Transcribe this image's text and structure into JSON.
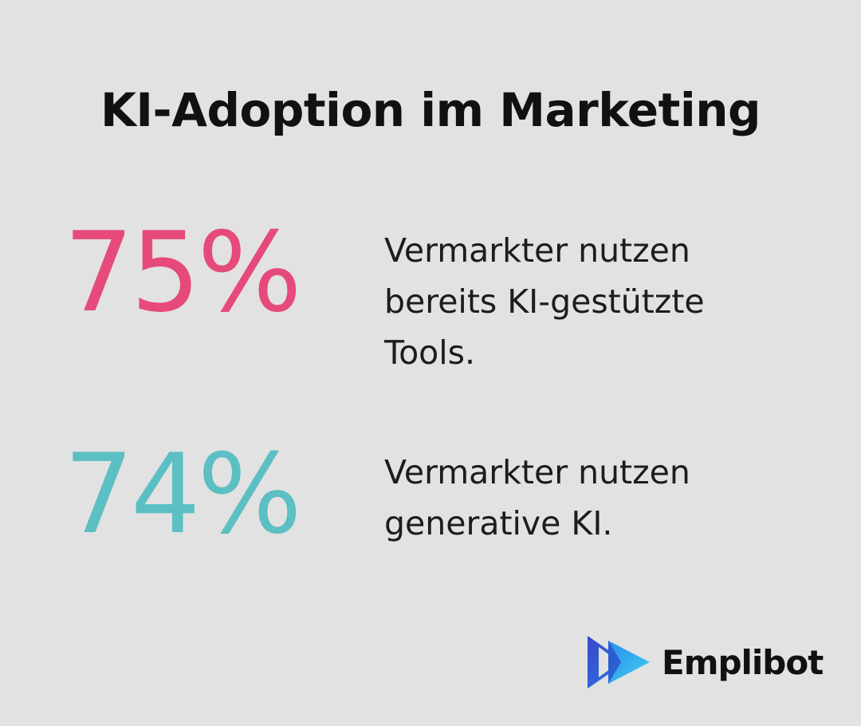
{
  "title": "KI-Adoption im Marketing",
  "stats": [
    {
      "value": "75%",
      "description": "Vermarkter nutzen bereits KI-gestützte Tools.",
      "color": "#e64a7a"
    },
    {
      "value": "74%",
      "description": "Vermarkter nutzen generative KI.",
      "color": "#5bbfc3"
    }
  ],
  "brand": {
    "name": "Emplibot",
    "logo_icon": "double-play-arrow-icon",
    "logo_colors": [
      "#2f5bd8",
      "#1e90e8",
      "#38c8f0"
    ]
  }
}
